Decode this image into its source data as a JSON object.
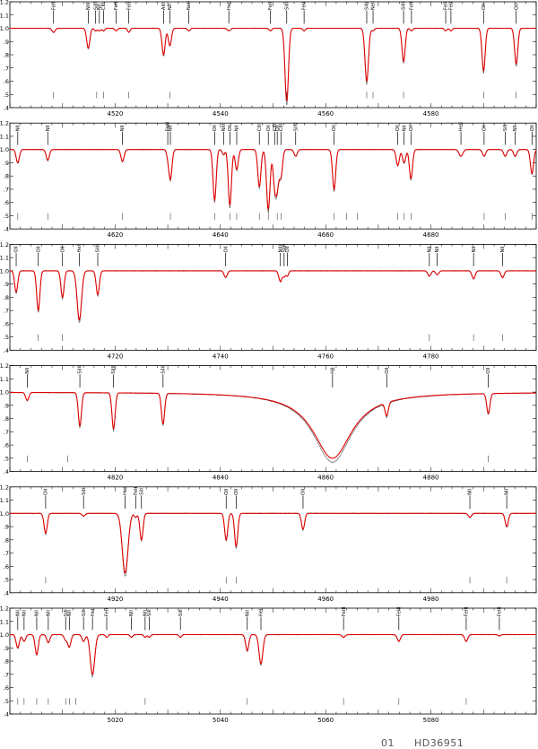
{
  "figure": {
    "star_id_index": "01",
    "star_name": "HD36951",
    "observed_color": "#555555",
    "model_color": "#e00000"
  },
  "chart_data": [
    {
      "type": "line",
      "xlim": [
        4500,
        4600
      ],
      "ylim": [
        0.4,
        1.2
      ],
      "xticks": [
        4520,
        4540,
        4560,
        4580
      ],
      "yticks": [
        0.4,
        0.5,
        0.6,
        0.7,
        0.8,
        0.9,
        1.0,
        1.1,
        1.2
      ],
      "lines": [
        {
          "label": "FeII",
          "wl": 4508.3,
          "depth": 0.03,
          "w": 0.5
        },
        {
          "label": "NIII",
          "wl": 4514.9,
          "depth": 0.15,
          "w": 0.5
        },
        {
          "label": "SiIII",
          "wl": 4516.3,
          "depth": 0.02,
          "w": 0.4
        },
        {
          "label": "NII",
          "wl": 4517.0,
          "depth": 0.02,
          "w": 0.4
        },
        {
          "label": "CIII",
          "wl": 4517.8,
          "depth": 0.02,
          "w": 0.4
        },
        {
          "label": "FeII",
          "wl": 4520.2,
          "depth": 0.02,
          "w": 0.4
        },
        {
          "label": "FeII",
          "wl": 4522.6,
          "depth": 0.03,
          "w": 0.4
        },
        {
          "label": "AlIII",
          "wl": 4529.2,
          "depth": 0.2,
          "w": 0.5
        },
        {
          "label": "NII",
          "wl": 4530.4,
          "depth": 0.13,
          "w": 0.5
        },
        {
          "label": "NeII",
          "wl": 4534.0,
          "depth": 0.02,
          "w": 0.4
        },
        {
          "label": "HeII",
          "wl": 4541.6,
          "depth": 0.02,
          "w": 0.5
        },
        {
          "label": "FeII",
          "wl": 4549.5,
          "depth": 0.02,
          "w": 0.4
        },
        {
          "label": "SiIII",
          "wl": 4552.6,
          "depth": 0.55,
          "w": 0.55
        },
        {
          "label": "FeII",
          "wl": 4555.9,
          "depth": 0.02,
          "w": 0.4
        },
        {
          "label": "SiIII",
          "wl": 4567.8,
          "depth": 0.4,
          "w": 0.55
        },
        {
          "label": "NeII",
          "wl": 4569.0,
          "depth": 0.02,
          "w": 0.4
        },
        {
          "label": "SiIII",
          "wl": 4574.8,
          "depth": 0.25,
          "w": 0.5
        },
        {
          "label": "FeII",
          "wl": 4576.3,
          "depth": 0.02,
          "w": 0.4
        },
        {
          "label": "FeII",
          "wl": 4582.8,
          "depth": 0.02,
          "w": 0.4
        },
        {
          "label": "FeII",
          "wl": 4583.8,
          "depth": 0.02,
          "w": 0.4
        },
        {
          "label": "OII",
          "wl": 4590.0,
          "depth": 0.32,
          "w": 0.5
        },
        {
          "label": "OII",
          "wl": 4596.2,
          "depth": 0.27,
          "w": 0.5
        }
      ],
      "ticks_below": [
        4508.3,
        4516.5,
        4517.8,
        4522.6,
        4530.4,
        4552.6,
        4567.8,
        4569.0,
        4574.8,
        4590.0,
        4596.2
      ]
    },
    {
      "type": "line",
      "xlim": [
        4600,
        4700
      ],
      "ylim": [
        0.4,
        1.2
      ],
      "xticks": [
        4620,
        4640,
        4660,
        4680
      ],
      "yticks": [
        0.4,
        0.5,
        0.6,
        0.7,
        0.8,
        0.9,
        1.0,
        1.1,
        1.2
      ],
      "lines": [
        {
          "label": "NII",
          "wl": 4601.5,
          "depth": 0.1,
          "w": 0.5
        },
        {
          "label": "NII",
          "wl": 4607.2,
          "depth": 0.08,
          "w": 0.5
        },
        {
          "label": "NII",
          "wl": 4621.4,
          "depth": 0.09,
          "w": 0.5
        },
        {
          "label": "FeIII",
          "wl": 4630.0,
          "depth": 0.04,
          "w": 0.4
        },
        {
          "label": "NII",
          "wl": 4630.5,
          "depth": 0.22,
          "w": 0.5
        },
        {
          "label": "OII",
          "wl": 4638.9,
          "depth": 0.38,
          "w": 0.5
        },
        {
          "label": "NIII",
          "wl": 4640.6,
          "depth": 0.04,
          "w": 0.4
        },
        {
          "label": "OII",
          "wl": 4641.8,
          "depth": 0.42,
          "w": 0.5
        },
        {
          "label": "NII",
          "wl": 4643.1,
          "depth": 0.15,
          "w": 0.5
        },
        {
          "label": "CIII",
          "wl": 4647.4,
          "depth": 0.28,
          "w": 0.5
        },
        {
          "label": "OII",
          "wl": 4649.1,
          "depth": 0.45,
          "w": 0.55
        },
        {
          "label": "CIII",
          "wl": 4650.3,
          "depth": 0.25,
          "w": 0.5
        },
        {
          "label": "OII",
          "wl": 4650.8,
          "depth": 0.25,
          "w": 0.5
        },
        {
          "label": "CIII",
          "wl": 4651.5,
          "depth": 0.2,
          "w": 0.5
        },
        {
          "label": "SiIV",
          "wl": 4654.3,
          "depth": 0.05,
          "w": 0.5
        },
        {
          "label": "OII",
          "wl": 4661.6,
          "depth": 0.3,
          "w": 0.5
        },
        {
          "label": "OII",
          "wl": 4673.7,
          "depth": 0.12,
          "w": 0.5
        },
        {
          "label": "NII",
          "wl": 4674.9,
          "depth": 0.1,
          "w": 0.5
        },
        {
          "label": "OII",
          "wl": 4676.2,
          "depth": 0.22,
          "w": 0.5
        },
        {
          "label": "HeII",
          "wl": 4685.7,
          "depth": 0.05,
          "w": 0.6
        },
        {
          "label": "OII",
          "wl": 4690.1,
          "depth": 0.05,
          "w": 0.5
        },
        {
          "label": "SiII",
          "wl": 4694.1,
          "depth": 0.05,
          "w": 0.5
        },
        {
          "label": "NII",
          "wl": 4696.0,
          "depth": 0.05,
          "w": 0.5
        },
        {
          "label": "OII",
          "wl": 4699.2,
          "depth": 0.18,
          "w": 0.5
        }
      ],
      "ticks_below": [
        4601.5,
        4607.2,
        4621.4,
        4630.5,
        4638.9,
        4641.8,
        4643.1,
        4647.4,
        4649.1,
        4650.8,
        4651.5,
        4661.6,
        4664.0,
        4666.0,
        4673.7,
        4674.9,
        4676.2,
        4690.1,
        4694.1,
        4699.2
      ]
    },
    {
      "type": "line",
      "xlim": [
        4700,
        4800
      ],
      "ylim": [
        0.4,
        1.2
      ],
      "xticks": [
        4720,
        4740,
        4760,
        4780
      ],
      "yticks": [
        0.4,
        0.5,
        0.6,
        0.7,
        0.8,
        0.9,
        1.0,
        1.1,
        1.2
      ],
      "lines": [
        {
          "label": "OII",
          "wl": 4701.2,
          "depth": 0.16,
          "w": 0.5
        },
        {
          "label": "OII",
          "wl": 4705.4,
          "depth": 0.3,
          "w": 0.5
        },
        {
          "label": "OII",
          "wl": 4710.0,
          "depth": 0.2,
          "w": 0.5
        },
        {
          "label": "HeI",
          "wl": 4713.2,
          "depth": 0.37,
          "w": 0.7
        },
        {
          "label": "SiIII",
          "wl": 4716.7,
          "depth": 0.18,
          "w": 0.5
        },
        {
          "label": "OII",
          "wl": 4741.0,
          "depth": 0.05,
          "w": 0.5
        },
        {
          "label": "NIII",
          "wl": 4751.4,
          "depth": 0.08,
          "w": 0.5
        },
        {
          "label": "SiIII",
          "wl": 4752.1,
          "depth": 0.04,
          "w": 0.4
        },
        {
          "label": "OII",
          "wl": 4752.7,
          "depth": 0.04,
          "w": 0.4
        },
        {
          "label": "NII",
          "wl": 4779.7,
          "depth": 0.04,
          "w": 0.5
        },
        {
          "label": "NII",
          "wl": 4781.2,
          "depth": 0.03,
          "w": 0.5
        },
        {
          "label": "NII",
          "wl": 4788.1,
          "depth": 0.06,
          "w": 0.5
        },
        {
          "label": "NII",
          "wl": 4793.6,
          "depth": 0.05,
          "w": 0.5
        }
      ],
      "ticks_below": [
        4705.4,
        4710.0,
        4779.7,
        4788.1,
        4793.6
      ]
    },
    {
      "type": "line",
      "xlim": [
        4800,
        4900
      ],
      "ylim": [
        0.4,
        1.2
      ],
      "xticks": [
        4820,
        4840,
        4860,
        4880
      ],
      "yticks": [
        0.4,
        0.5,
        0.6,
        0.7,
        0.8,
        0.9,
        1.0,
        1.1,
        1.2
      ],
      "lines": [
        {
          "label": "NII",
          "wl": 4803.3,
          "depth": 0.06,
          "w": 0.5
        },
        {
          "label": "SiIII",
          "wl": 4813.3,
          "depth": 0.25,
          "w": 0.5
        },
        {
          "label": "SiIII",
          "wl": 4819.7,
          "depth": 0.27,
          "w": 0.5
        },
        {
          "label": "SiIII",
          "wl": 4829.1,
          "depth": 0.23,
          "w": 0.5
        },
        {
          "label": "Hβ",
          "wl": 4861.3,
          "depth": 0.5,
          "w": 4.5
        },
        {
          "label": "OII",
          "wl": 4871.6,
          "depth": 0.1,
          "w": 0.5
        },
        {
          "label": "OII",
          "wl": 4890.9,
          "depth": 0.15,
          "w": 0.5
        }
      ],
      "ticks_below": [
        4803.3,
        4811.0,
        4890.9
      ]
    },
    {
      "type": "line",
      "xlim": [
        4900,
        5000
      ],
      "ylim": [
        0.4,
        1.2
      ],
      "xticks": [
        4920,
        4940,
        4960,
        4980
      ],
      "yticks": [
        0.4,
        0.5,
        0.6,
        0.7,
        0.8,
        0.9,
        1.0,
        1.1,
        1.2
      ],
      "lines": [
        {
          "label": "OII",
          "wl": 4906.8,
          "depth": 0.15,
          "w": 0.5
        },
        {
          "label": "SiII",
          "wl": 4914.0,
          "depth": 0.02,
          "w": 0.5
        },
        {
          "label": "HeI",
          "wl": 4921.9,
          "depth": 0.45,
          "w": 0.9
        },
        {
          "label": "FeII",
          "wl": 4923.9,
          "depth": 0.03,
          "w": 0.4
        },
        {
          "label": "SiII",
          "wl": 4925.0,
          "depth": 0.2,
          "w": 0.5
        },
        {
          "label": "OII",
          "wl": 4941.1,
          "depth": 0.2,
          "w": 0.5
        },
        {
          "label": "OII",
          "wl": 4943.0,
          "depth": 0.25,
          "w": 0.5
        },
        {
          "label": "OII",
          "wl": 4955.7,
          "depth": 0.12,
          "w": 0.5
        },
        {
          "label": "NII",
          "wl": 4987.4,
          "depth": 0.03,
          "w": 0.5
        },
        {
          "label": "NII",
          "wl": 4994.4,
          "depth": 0.1,
          "w": 0.5
        }
      ],
      "ticks_below": [
        4906.8,
        4941.1,
        4943.0,
        4987.4,
        4994.4
      ]
    },
    {
      "type": "line",
      "xlim": [
        5000,
        5100
      ],
      "ylim": [
        0.4,
        1.2
      ],
      "xticks": [
        5020,
        5040,
        5060,
        5080
      ],
      "yticks": [
        0.4,
        0.5,
        0.6,
        0.7,
        0.8,
        0.9,
        1.0,
        1.1,
        1.2
      ],
      "lines": [
        {
          "label": "NII",
          "wl": 5001.5,
          "depth": 0.1,
          "w": 0.5
        },
        {
          "label": "NII",
          "wl": 5002.7,
          "depth": 0.05,
          "w": 0.5
        },
        {
          "label": "NII",
          "wl": 5005.1,
          "depth": 0.15,
          "w": 0.5
        },
        {
          "label": "NII",
          "wl": 5007.3,
          "depth": 0.06,
          "w": 0.5
        },
        {
          "label": "SiII",
          "wl": 5010.6,
          "depth": 0.04,
          "w": 0.5
        },
        {
          "label": "NII",
          "wl": 5011.3,
          "depth": 0.09,
          "w": 0.5
        },
        {
          "label": "SiII",
          "wl": 5014.0,
          "depth": 0.05,
          "w": 0.5
        },
        {
          "label": "HeI",
          "wl": 5015.7,
          "depth": 0.3,
          "w": 0.7
        },
        {
          "label": "FeII",
          "wl": 5018.4,
          "depth": 0.02,
          "w": 0.4
        },
        {
          "label": "NII",
          "wl": 5023.1,
          "depth": 0.02,
          "w": 0.4
        },
        {
          "label": "NII",
          "wl": 5025.7,
          "depth": 0.02,
          "w": 0.4
        },
        {
          "label": "SiII",
          "wl": 5026.5,
          "depth": 0.02,
          "w": 0.4
        },
        {
          "label": "SiII",
          "wl": 5032.4,
          "depth": 0.02,
          "w": 0.4
        },
        {
          "label": "NII",
          "wl": 5045.1,
          "depth": 0.12,
          "w": 0.5
        },
        {
          "label": "HeI",
          "wl": 5047.7,
          "depth": 0.22,
          "w": 0.6
        },
        {
          "label": "FeIII",
          "wl": 5063.4,
          "depth": 0.02,
          "w": 0.5
        },
        {
          "label": "FeIII",
          "wl": 5073.9,
          "depth": 0.05,
          "w": 0.5
        },
        {
          "label": "FeIII",
          "wl": 5086.7,
          "depth": 0.05,
          "w": 0.5
        },
        {
          "label": "FeIII",
          "wl": 5093.0,
          "depth": 0.01,
          "w": 0.4
        }
      ],
      "ticks_below": [
        5001.5,
        5002.7,
        5005.1,
        5007.3,
        5010.6,
        5011.3,
        5012.5,
        5025.7,
        5045.1,
        5063.4,
        5073.9,
        5086.7
      ]
    }
  ]
}
